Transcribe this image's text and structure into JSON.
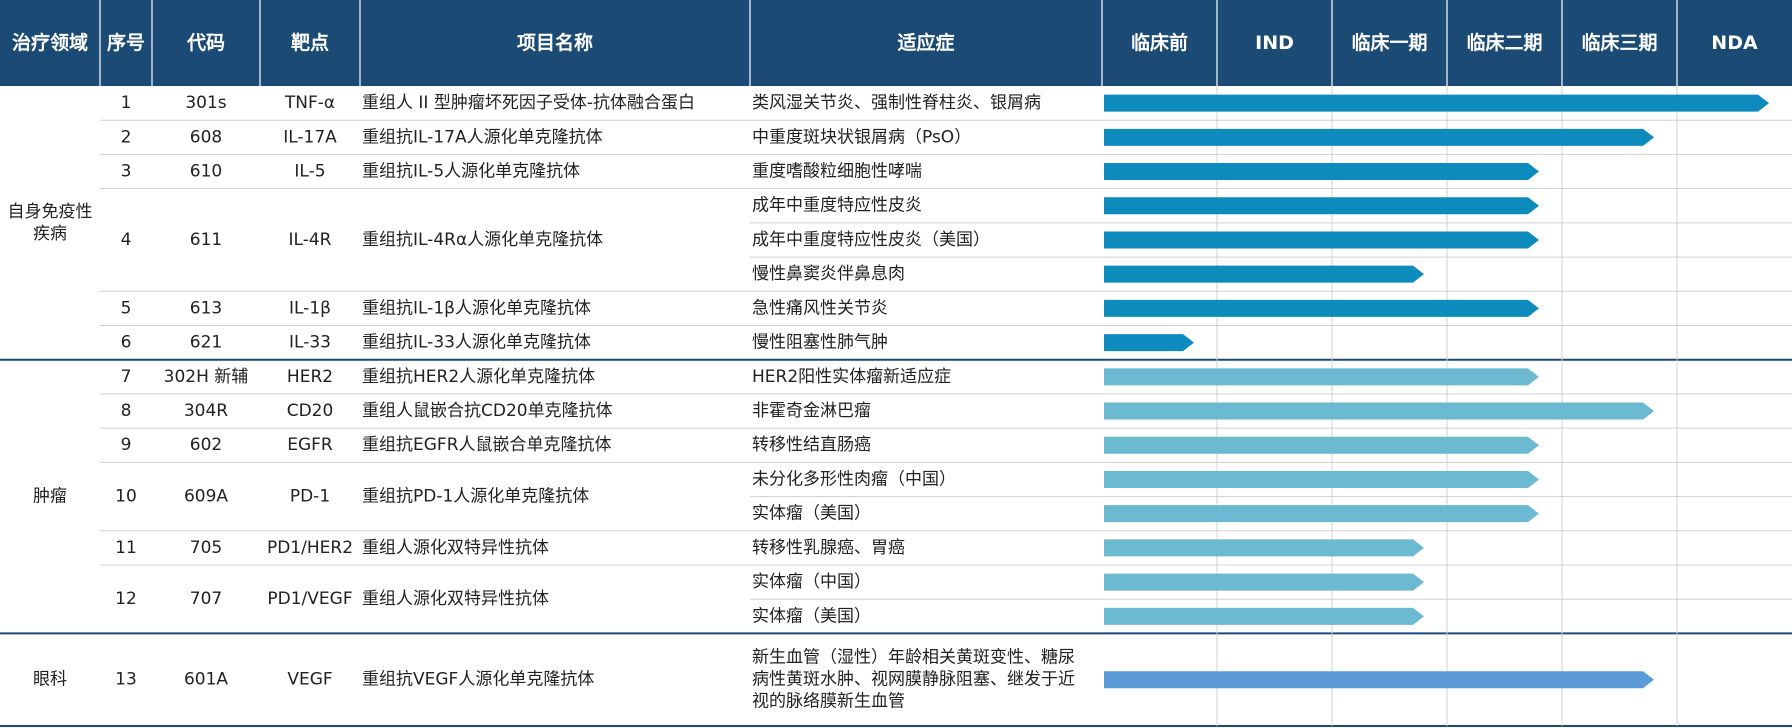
{
  "header": {
    "columns": [
      "治疗领域",
      "序号",
      "代码",
      "靶点",
      "项目名称",
      "适应症"
    ],
    "stages": [
      "临床前",
      "IND",
      "临床一期",
      "临床二期",
      "临床三期",
      "NDA"
    ]
  },
  "colors": {
    "header_bg": "#1b4a74",
    "bar_autoimmune": "#0d8bbd",
    "bar_oncology": "#6cb9d2",
    "bar_ophthalmology": "#5a9bd8",
    "grid": "#d0d0d0",
    "header_line": "#ffffff"
  },
  "chart_data": {
    "type": "table",
    "groups": [
      {
        "area": "自身免疫性\n疾病",
        "bar_color_key": "bar_autoimmune",
        "projects": [
          {
            "no": "1",
            "code": "301s",
            "target": "TNF-α",
            "name": "重组人 II 型肿瘤坏死因子受体-抗体融合蛋白",
            "indications": [
              {
                "label": "类风湿关节炎、强制性脊柱炎、银屑病",
                "stage": "NDA"
              }
            ]
          },
          {
            "no": "2",
            "code": "608",
            "target": "IL-17A",
            "name": "重组抗IL-17A人源化单克隆抗体",
            "indications": [
              {
                "label": "中重度斑块状银屑病（PsO）",
                "stage": "临床三期"
              }
            ]
          },
          {
            "no": "3",
            "code": "610",
            "target": "IL-5",
            "name": "重组抗IL-5人源化单克隆抗体",
            "indications": [
              {
                "label": "重度嗜酸粒细胞性哮喘",
                "stage": "临床二期"
              }
            ]
          },
          {
            "no": "4",
            "code": "611",
            "target": "IL-4R",
            "name": "重组抗IL-4Rα人源化单克隆抗体",
            "indications": [
              {
                "label": "成年中重度特应性皮炎",
                "stage": "临床二期"
              },
              {
                "label": "成年中重度特应性皮炎（美国）",
                "stage": "临床二期"
              },
              {
                "label": "慢性鼻窦炎伴鼻息肉",
                "stage": "临床一期"
              }
            ]
          },
          {
            "no": "5",
            "code": "613",
            "target": "IL-1β",
            "name": "重组抗IL-1β人源化单克隆抗体",
            "indications": [
              {
                "label": "急性痛风性关节炎",
                "stage": "临床二期"
              }
            ]
          },
          {
            "no": "6",
            "code": "621",
            "target": "IL-33",
            "name": "重组抗IL-33人源化单克隆抗体",
            "indications": [
              {
                "label": "慢性阻塞性肺气肿",
                "stage": "临床前"
              }
            ]
          }
        ]
      },
      {
        "area": "肿瘤",
        "bar_color_key": "bar_oncology",
        "projects": [
          {
            "no": "7",
            "code": "302H 新辅",
            "target": "HER2",
            "name": "重组抗HER2人源化单克隆抗体",
            "indications": [
              {
                "label": "HER2阳性实体瘤新适应症",
                "stage": "临床二期"
              }
            ]
          },
          {
            "no": "8",
            "code": "304R",
            "target": "CD20",
            "name": "重组人鼠嵌合抗CD20单克隆抗体",
            "indications": [
              {
                "label": "非霍奇金淋巴瘤",
                "stage": "临床三期"
              }
            ]
          },
          {
            "no": "9",
            "code": "602",
            "target": "EGFR",
            "name": "重组抗EGFR人鼠嵌合单克隆抗体",
            "indications": [
              {
                "label": "转移性结直肠癌",
                "stage": "临床二期"
              }
            ]
          },
          {
            "no": "10",
            "code": "609A",
            "target": "PD-1",
            "name": "重组抗PD-1人源化单克隆抗体",
            "indications": [
              {
                "label": "未分化多形性肉瘤（中国）",
                "stage": "临床二期"
              },
              {
                "label": "实体瘤（美国）",
                "stage": "临床二期"
              }
            ]
          },
          {
            "no": "11",
            "code": "705",
            "target": "PD1/HER2",
            "name": "重组人源化双特异性抗体",
            "indications": [
              {
                "label": "转移性乳腺癌、胃癌",
                "stage": "临床一期"
              }
            ]
          },
          {
            "no": "12",
            "code": "707",
            "target": "PD1/VEGF",
            "name": "重组人源化双特异性抗体",
            "indications": [
              {
                "label": "实体瘤（中国）",
                "stage": "临床一期"
              },
              {
                "label": "实体瘤（美国）",
                "stage": "临床一期"
              }
            ]
          }
        ]
      },
      {
        "area": "眼科",
        "bar_color_key": "bar_ophthalmology",
        "projects": [
          {
            "no": "13",
            "code": "601A",
            "target": "VEGF",
            "name": "重组抗VEGF人源化单克隆抗体",
            "indications": [
              {
                "label": "新生血管（湿性）年龄相关黄斑变性、糖尿\n病性黄斑水肿、视网膜静脉阻塞、继发于近\n视的脉络膜新生血管",
                "stage": "临床三期"
              }
            ]
          }
        ]
      }
    ]
  }
}
